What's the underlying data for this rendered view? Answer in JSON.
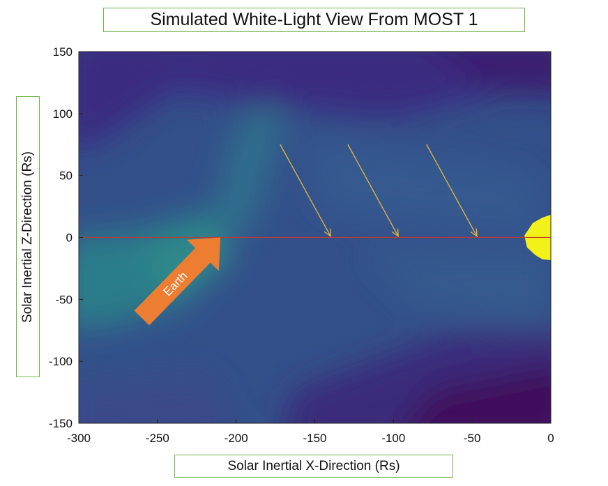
{
  "chart_data": {
    "type": "heatmap",
    "title": "Simulated White-Light View From MOST 1",
    "xlabel": "Solar Inertial X-Direction (Rs)",
    "ylabel": "Solar Inertial Z-Direction (Rs)",
    "xlim": [
      -300,
      0
    ],
    "ylim": [
      -150,
      150
    ],
    "xticks": [
      -300,
      -250,
      -200,
      -150,
      -100,
      -50,
      0
    ],
    "yticks": [
      150,
      100,
      50,
      0,
      -50,
      -100,
      -150
    ],
    "grid": false,
    "colormap": "viridis",
    "reference_line": {
      "z": 0,
      "color": "#c0392b"
    },
    "annotations": [
      {
        "text": "Earth",
        "type": "block-arrow",
        "tip": [
          -210,
          0
        ],
        "tail": [
          -260,
          -65
        ],
        "color": "#ed7d31"
      },
      {
        "type": "arrow",
        "from": [
          -172,
          75
        ],
        "to": [
          -140,
          1
        ],
        "color": "#e8b93a"
      },
      {
        "type": "arrow",
        "from": [
          -129,
          75
        ],
        "to": [
          -97,
          1
        ],
        "color": "#e8b93a"
      },
      {
        "type": "arrow",
        "from": [
          -79,
          75
        ],
        "to": [
          -47,
          1
        ],
        "color": "#e8b93a"
      }
    ],
    "sun_marker": {
      "x": 0,
      "z": 0,
      "color": "#f2f21a"
    }
  }
}
